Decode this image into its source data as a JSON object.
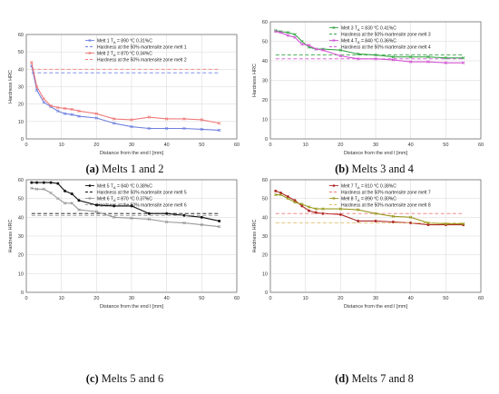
{
  "chart_data": [
    {
      "type": "line",
      "panel": "a",
      "caption_letter": "(a)",
      "caption_text": " Melts 1 and 2",
      "xlabel": "Distance from the end l [mm]",
      "ylabel": "Hardness HRC",
      "xlim": [
        0,
        60
      ],
      "ylim": [
        0,
        60
      ],
      "xticks": [
        0,
        10,
        20,
        30,
        40,
        50,
        60
      ],
      "yticks": [
        0,
        10,
        20,
        30,
        40,
        50,
        60
      ],
      "grid": true,
      "legend_position": "top-right",
      "series": [
        {
          "name": "Melt 1 TA = 890 °C 0.31%C",
          "color": "#6f80e0",
          "marker": "x",
          "style": "solid",
          "x": [
            1.5,
            3,
            5,
            7,
            9,
            11,
            13,
            15,
            20,
            25,
            30,
            35,
            40,
            45,
            50,
            55
          ],
          "y": [
            42,
            28,
            21,
            18.5,
            16,
            14.5,
            14,
            13,
            12,
            9,
            7,
            6,
            6,
            6,
            5.5,
            5
          ]
        },
        {
          "name": "Hardness at the 50% martensite zone melt 1",
          "color": "#6f80e0",
          "style": "dashed",
          "x": [
            1.5,
            55
          ],
          "y": [
            38,
            38
          ]
        },
        {
          "name": "Melt 2 TA = 870 °C 0.34%C",
          "color": "#f07a7a",
          "marker": "x",
          "style": "solid",
          "x": [
            1.5,
            3,
            5,
            7,
            9,
            11,
            13,
            15,
            20,
            25,
            30,
            35,
            40,
            45,
            50,
            55
          ],
          "y": [
            44,
            30,
            23,
            19,
            18,
            17.5,
            17,
            16,
            14.5,
            11.5,
            11,
            12.5,
            11.5,
            11.5,
            11,
            9
          ]
        },
        {
          "name": "Hardness at the 50% martensite zone melt 2",
          "color": "#f07a7a",
          "style": "dashed",
          "x": [
            1.5,
            55
          ],
          "y": [
            40,
            40
          ]
        }
      ]
    },
    {
      "type": "line",
      "panel": "b",
      "caption_letter": "(b)",
      "caption_text": " Melts 3 and 4",
      "xlabel": "Distance from the end l [mm]",
      "ylabel": "Hardness HRC",
      "xlim": [
        0,
        60
      ],
      "ylim": [
        0,
        60
      ],
      "xticks": [
        0,
        10,
        20,
        30,
        40,
        50,
        60
      ],
      "yticks": [
        0,
        10,
        20,
        30,
        40,
        50,
        60
      ],
      "grid": true,
      "legend_position": "top-right",
      "series": [
        {
          "name": "Melt 3 TA = 830 °C 0.41%C",
          "color": "#3aa64a",
          "marker": "x",
          "style": "solid",
          "x": [
            1.5,
            3,
            5,
            7,
            9,
            11,
            13,
            15,
            20,
            25,
            30,
            35,
            40,
            45,
            50,
            55
          ],
          "y": [
            55.5,
            55,
            54.5,
            53.5,
            50,
            47,
            46,
            46,
            45.5,
            43.5,
            43,
            42,
            42,
            42,
            41.5,
            41.5
          ]
        },
        {
          "name": "Hardness at the 50% martensite zone melt 3",
          "color": "#3aa64a",
          "style": "dashed",
          "x": [
            1.5,
            55
          ],
          "y": [
            43,
            43
          ]
        },
        {
          "name": "Melt 4 TA = 840 °C 0.36%C",
          "color": "#d455d4",
          "marker": "x",
          "style": "solid",
          "x": [
            1.5,
            3,
            5,
            7,
            9,
            11,
            13,
            15,
            20,
            25,
            30,
            35,
            40,
            45,
            50,
            55
          ],
          "y": [
            55,
            54.5,
            53,
            52,
            48.5,
            48,
            46,
            45.5,
            42.5,
            41,
            41,
            40.5,
            39.5,
            39.5,
            39,
            39
          ]
        },
        {
          "name": "Hardness at the 50% martensite zone melt 4",
          "color": "#d455d4",
          "style": "dashed",
          "x": [
            1.5,
            55
          ],
          "y": [
            41,
            41
          ]
        }
      ]
    },
    {
      "type": "line",
      "panel": "c",
      "caption_letter": "(c)",
      "caption_text": " Melts 5 and 6",
      "xlabel": "Distance from the end l [mm]",
      "ylabel": "Hardness HRC",
      "xlim": [
        0,
        60
      ],
      "ylim": [
        0,
        60
      ],
      "xticks": [
        0,
        10,
        20,
        30,
        40,
        50,
        60
      ],
      "yticks": [
        0,
        10,
        20,
        30,
        40,
        50,
        60
      ],
      "grid": true,
      "legend_position": "top-right",
      "series": [
        {
          "name": "Melt 5 TA = 840 °C 0.38%C",
          "color": "#111111",
          "marker": "dot",
          "style": "solid",
          "x": [
            1.5,
            3,
            5,
            7,
            9,
            11,
            13,
            15,
            20,
            25,
            30,
            35,
            40,
            45,
            50,
            55
          ],
          "y": [
            58.5,
            58.5,
            58.5,
            58.5,
            58,
            54,
            52.5,
            49,
            46.5,
            46,
            46,
            42,
            42,
            41,
            40,
            38
          ]
        },
        {
          "name": "Hardness at the 50% martensite zone melt 5",
          "color": "#111111",
          "style": "dashed",
          "x": [
            1.5,
            55
          ],
          "y": [
            42,
            42
          ]
        },
        {
          "name": "Melt 6 TA = 870 °C 0.37%C",
          "color": "#999999",
          "marker": "x",
          "style": "solid",
          "x": [
            1.5,
            3,
            5,
            7,
            9,
            11,
            13,
            15,
            20,
            25,
            30,
            35,
            40,
            45,
            50,
            55
          ],
          "y": [
            55.5,
            55,
            55,
            53,
            50,
            47.5,
            47.5,
            44,
            43,
            40,
            39.5,
            39,
            37.5,
            37,
            36,
            35
          ]
        },
        {
          "name": "Hardness at the 50% martensite zone melt 6",
          "color": "#999999",
          "style": "dashed",
          "x": [
            1.5,
            55
          ],
          "y": [
            41,
            41
          ]
        }
      ]
    },
    {
      "type": "line",
      "panel": "d",
      "caption_letter": "(d)",
      "caption_text": " Melts 7 and 8",
      "xlabel": "Distance from the end l [mm]",
      "ylabel": "Hardness HRC",
      "xlim": [
        0,
        60
      ],
      "ylim": [
        0,
        60
      ],
      "xticks": [
        0,
        10,
        20,
        30,
        40,
        50,
        60
      ],
      "yticks": [
        0,
        10,
        20,
        30,
        40,
        50,
        60
      ],
      "grid": true,
      "legend_position": "top-right",
      "series": [
        {
          "name": "Melt 7 TA = 810 °C 0.38%C",
          "color": "#b02a2a",
          "marker": "dot",
          "style": "solid",
          "x": [
            1.5,
            3,
            5,
            7,
            9,
            11,
            13,
            15,
            20,
            25,
            30,
            35,
            40,
            45,
            50,
            55
          ],
          "y": [
            54,
            53,
            51,
            49,
            46,
            43.5,
            42.5,
            42,
            41.5,
            38,
            38,
            37.5,
            37,
            36,
            36,
            36
          ]
        },
        {
          "name": "Hardness at the 50% martensite zone melt 7",
          "color": "#f07a7a",
          "style": "dashed",
          "x": [
            1.5,
            55
          ],
          "y": [
            42,
            42
          ]
        },
        {
          "name": "Melt 8 TA = 890 °C 0.30%C",
          "color": "#9a9a20",
          "marker": "x",
          "style": "solid",
          "x": [
            1.5,
            3,
            5,
            7,
            9,
            11,
            13,
            15,
            20,
            25,
            30,
            35,
            40,
            45,
            50,
            55
          ],
          "y": [
            52,
            52,
            50,
            48,
            47,
            45.5,
            44.5,
            44.5,
            44.5,
            44,
            42,
            40.5,
            40,
            37,
            36.5,
            36.5
          ]
        },
        {
          "name": "Hardness at the 50% martensite zone melt 8",
          "color": "#e0c070",
          "style": "dashed",
          "x": [
            1.5,
            55
          ],
          "y": [
            37,
            37
          ]
        }
      ]
    }
  ]
}
